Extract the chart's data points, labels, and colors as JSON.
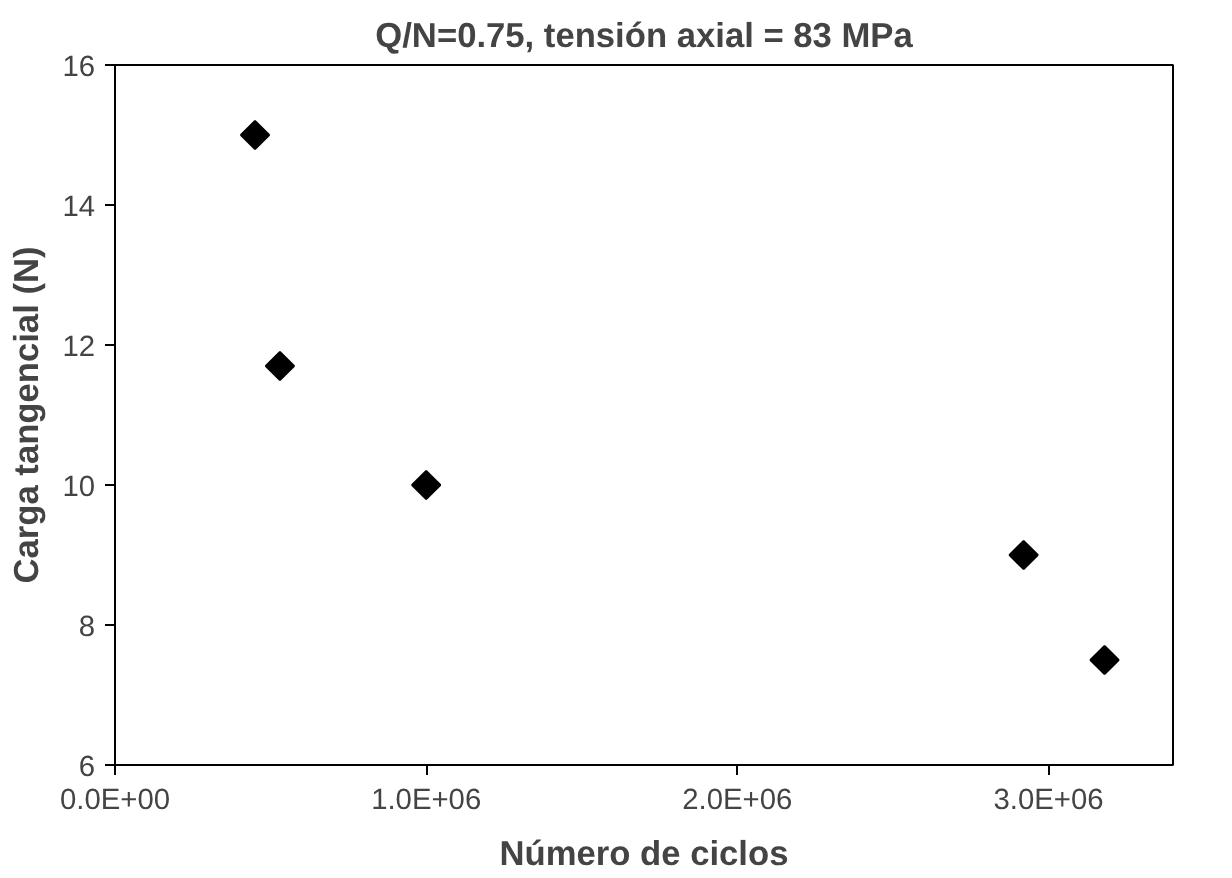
{
  "chart_data": {
    "type": "scatter",
    "title": "Q/N=0.75, tensión axial = 83 MPa",
    "xlabel": "Número de ciclos",
    "ylabel": "Carga tangencial (N)",
    "x": [
      450000,
      530000,
      1000000,
      2920000,
      3180000
    ],
    "series": [
      {
        "color": "#000000",
        "values": [
          15.0,
          11.7,
          10.0,
          9.0,
          7.5
        ]
      }
    ],
    "xlim": [
      0,
      3400000
    ],
    "xticks": [
      {
        "value": 0,
        "label": "0.0E+00"
      },
      {
        "value": 1000000,
        "label": "1.0E+06"
      },
      {
        "value": 2000000,
        "label": "2.0E+06"
      },
      {
        "value": 3000000,
        "label": "3.0E+06"
      }
    ],
    "ylim": [
      6,
      16
    ],
    "yticks": [
      6,
      8,
      10,
      12,
      14,
      16
    ],
    "grid": false,
    "marker": "diamond"
  }
}
